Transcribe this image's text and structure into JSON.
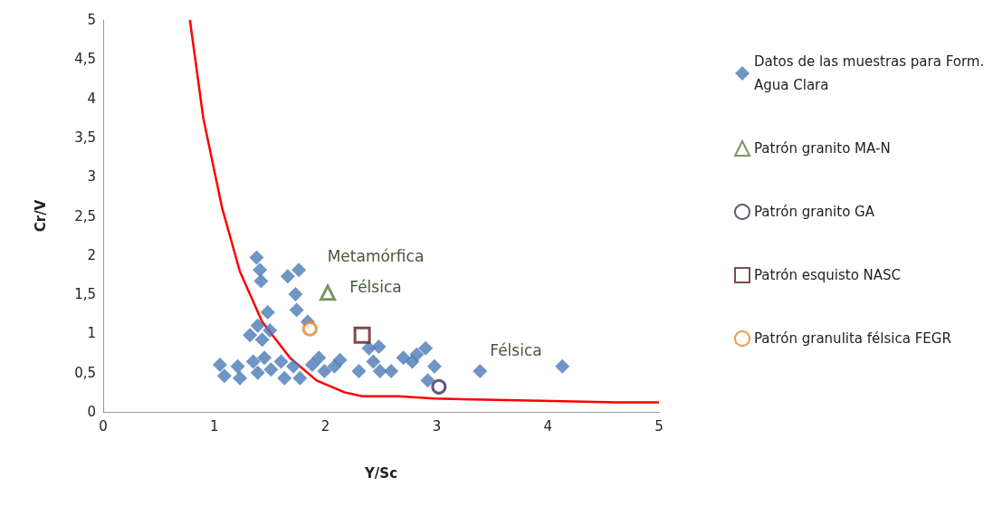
{
  "chart_data": {
    "type": "scatter",
    "xlabel": "Y/Sc",
    "ylabel": "Cr/V",
    "xlim": [
      0,
      5
    ],
    "xticks": [
      0,
      1,
      2,
      3,
      4,
      5
    ],
    "ylim": [
      0,
      5
    ],
    "yticks": [
      0,
      {
        "value": 0.5,
        "label": "0,5"
      },
      1,
      {
        "value": 1.5,
        "label": "1,5"
      },
      2,
      {
        "value": 2.5,
        "label": "2,5"
      },
      3,
      {
        "value": 3.5,
        "label": "3,5"
      },
      4,
      {
        "value": 4.5,
        "label": "4,5"
      },
      5
    ],
    "grid": false,
    "legend": "right",
    "annotations": [
      "Metamórfica",
      "Félsica",
      "Félsica"
    ],
    "series": [
      {
        "name": "Datos de las muestras para Form. Agua Clara",
        "color": "#4a7ab5",
        "marker": "diamond",
        "x": [
          1.38,
          1.41,
          1.42,
          1.66,
          1.76,
          1.73,
          1.74,
          1.84,
          1.48,
          1.39,
          1.32,
          1.5,
          1.43,
          1.05,
          1.09,
          1.21,
          1.23,
          1.35,
          1.39,
          1.45,
          1.51,
          1.6,
          1.63,
          1.71,
          1.77,
          1.88,
          1.94,
          1.99,
          2.08,
          2.13,
          2.3,
          2.39,
          2.48,
          2.43,
          2.49,
          2.59,
          2.7,
          2.78,
          2.82,
          2.9,
          2.98,
          2.92,
          3.39,
          4.13
        ],
        "values": [
          1.97,
          1.81,
          1.67,
          1.73,
          1.81,
          1.5,
          1.3,
          1.15,
          1.27,
          1.1,
          0.98,
          1.04,
          0.92,
          0.6,
          0.46,
          0.58,
          0.43,
          0.64,
          0.5,
          0.69,
          0.54,
          0.64,
          0.43,
          0.58,
          0.43,
          0.6,
          0.69,
          0.52,
          0.58,
          0.66,
          0.52,
          0.81,
          0.83,
          0.64,
          0.52,
          0.52,
          0.69,
          0.64,
          0.73,
          0.81,
          0.58,
          0.4,
          0.52,
          0.58
        ]
      },
      {
        "name": "Patrón granito MA-N",
        "color": "#5a7a3a",
        "marker": "triangle",
        "x": [
          2.02
        ],
        "values": [
          1.52
        ]
      },
      {
        "name": "Patrón granito GA",
        "color": "#3f3152",
        "marker": "circle",
        "x": [
          3.02
        ],
        "values": [
          0.32
        ]
      },
      {
        "name": "Patrón esquisto NASC",
        "color": "#5c1f1f",
        "marker": "square",
        "x": [
          2.33
        ],
        "values": [
          0.98
        ]
      },
      {
        "name": "Patrón granulita félsica FEGR",
        "color": "#e8822a",
        "marker": "circle",
        "x": [
          1.86
        ],
        "values": [
          1.06
        ]
      },
      {
        "type": "line",
        "color": "#ff0000",
        "marker": "none",
        "line_style": "solid",
        "x": [
          0.78,
          0.9,
          1.07,
          1.23,
          1.43,
          1.68,
          1.92,
          2.17,
          2.33,
          2.65,
          2.98,
          3.31,
          3.63,
          4.04,
          4.61,
          5
        ],
        "values": [
          5,
          3.75,
          2.6,
          1.79,
          1.15,
          0.69,
          0.4,
          0.25,
          0.2,
          0.2,
          0.17,
          0.16,
          0.15,
          0.14,
          0.12,
          0.12
        ]
      }
    ]
  }
}
